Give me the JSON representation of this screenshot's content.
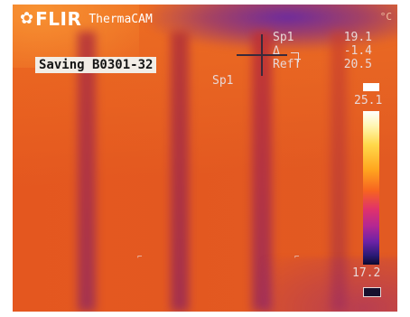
{
  "branding": {
    "logo_symbol": "✿",
    "brand": "FLIR",
    "model": "ThermaCAM"
  },
  "status": {
    "saving_text": "Saving B0301-32"
  },
  "measurements": {
    "spot_label": "Sp1",
    "spot_value": "19.1",
    "delta_label": "Δ",
    "delta_value": "-1.4",
    "ref_label": "RefT",
    "ref_value": "20.5"
  },
  "crosshair": {
    "label": "Sp1"
  },
  "scale": {
    "max": "25.1",
    "min": "17.2",
    "unit_mark": "°C"
  },
  "palette": {
    "background": "#e4571f",
    "hot": "#ffffff",
    "cold": "#0d0a2e"
  }
}
